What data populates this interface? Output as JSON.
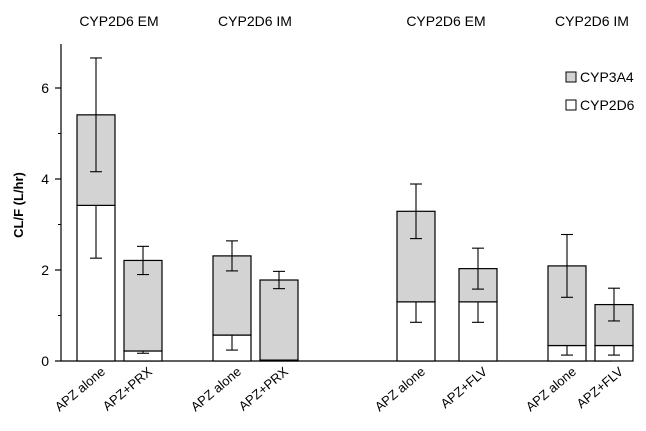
{
  "chart_data": {
    "type": "bar",
    "stacked": true,
    "ylabel": "CL/F (L/hr)",
    "xlabel": "",
    "ylim": [
      0,
      7
    ],
    "yticks": [
      0,
      2,
      4,
      6
    ],
    "grid": false,
    "legend_position": "top-right",
    "group_labels": [
      "CYP2D6 EM",
      "CYP2D6 IM",
      "CYP2D6 EM",
      "CYP2D6 IM"
    ],
    "categories": [
      "APZ alone",
      "APZ+PRX",
      "APZ alone",
      "APZ+PRX",
      "APZ alone",
      "APZ+FLV",
      "APZ alone",
      "APZ+FLV"
    ],
    "series": [
      {
        "name": "CYP2D6",
        "color": "#ffffff",
        "values": [
          3.42,
          0.22,
          0.57,
          0.02,
          1.3,
          1.3,
          0.34,
          0.34
        ],
        "error_low": [
          2.26,
          0.17,
          0.24,
          0.0,
          0.85,
          0.85,
          0.13,
          0.13
        ]
      },
      {
        "name": "CYP3A4",
        "color": "#d3d3d3",
        "values": [
          1.99,
          1.99,
          1.74,
          1.76,
          1.99,
          0.73,
          1.75,
          0.9
        ],
        "error": [
          1.25,
          0.31,
          0.33,
          0.19,
          0.6,
          0.45,
          0.69,
          0.36
        ]
      }
    ]
  }
}
